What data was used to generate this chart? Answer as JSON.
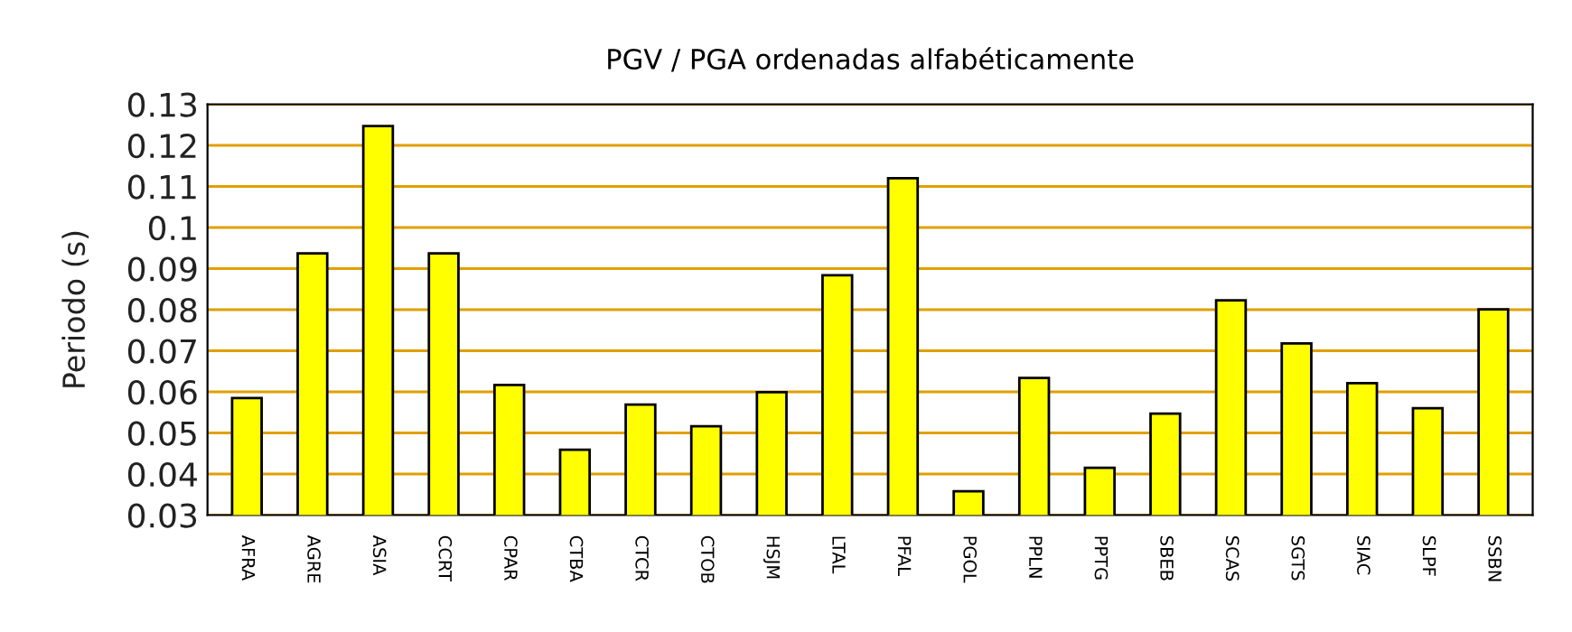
{
  "chart_data": {
    "type": "bar",
    "title": "PGV / PGA ordenadas alfabéticamente",
    "ylabel": "Periodo (s)",
    "categories": [
      "AFRA",
      "AGRE",
      "ASIA",
      "CCRT",
      "CPAR",
      "CTBA",
      "CTCR",
      "CTOB",
      "HSJM",
      "LTAL",
      "PFAL",
      "PGOL",
      "PPLN",
      "PPTG",
      "SBEB",
      "SCAS",
      "SGTS",
      "SIAC",
      "SLPF",
      "SSBN"
    ],
    "values": [
      0.0585,
      0.0937,
      0.1247,
      0.0937,
      0.0617,
      0.0459,
      0.0569,
      0.0516,
      0.0599,
      0.0884,
      0.112,
      0.0358,
      0.0634,
      0.0415,
      0.0547,
      0.0823,
      0.0718,
      0.0621,
      0.056,
      0.0801
    ],
    "color": "#ffff00",
    "ylim": [
      0.03,
      0.13
    ],
    "yticks": [
      0.03,
      0.04,
      0.05,
      0.06,
      0.07,
      0.08,
      0.09,
      0.1,
      0.11,
      0.12,
      0.13
    ],
    "grid": "y",
    "legend": false
  }
}
